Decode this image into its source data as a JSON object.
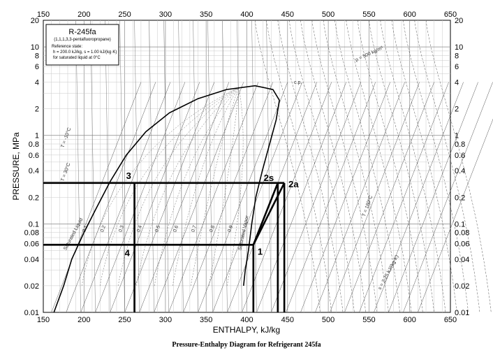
{
  "chart_data": {
    "type": "line",
    "title": "Pressure-Enthalpy Diagram for Refrigerant 245fa",
    "xlabel": "ENTHALPY, kJ/kg",
    "ylabel": "PRESSURE, MPa",
    "xlim": [
      150,
      650
    ],
    "ylim": [
      0.01,
      20
    ],
    "yscale": "log",
    "xticks": [
      150,
      200,
      250,
      300,
      350,
      400,
      450,
      500,
      550,
      600,
      650
    ],
    "yticks": [
      {
        "value": 0.01,
        "label": "0.01"
      },
      {
        "value": 0.02,
        "label": "0.02"
      },
      {
        "value": 0.04,
        "label": "0.04"
      },
      {
        "value": 0.06,
        "label": "0.06"
      },
      {
        "value": 0.08,
        "label": "0.08"
      },
      {
        "value": 0.1,
        "label": "0.1"
      },
      {
        "value": 0.2,
        "label": "0.2"
      },
      {
        "value": 0.4,
        "label": "0.4"
      },
      {
        "value": 0.6,
        "label": "0.6"
      },
      {
        "value": 0.8,
        "label": "0.8"
      },
      {
        "value": 1,
        "label": "1"
      },
      {
        "value": 2,
        "label": "2"
      },
      {
        "value": 4,
        "label": "4"
      },
      {
        "value": 6,
        "label": "6"
      },
      {
        "value": 8,
        "label": "8"
      },
      {
        "value": 10,
        "label": "10"
      },
      {
        "value": 20,
        "label": "20"
      }
    ],
    "grid": true,
    "legend_box": {
      "title": "R-245fa",
      "subtitle": "(1,1,1,3,3-pentafluoropropane)",
      "lines": [
        "Reference state:",
        "h = 200.0 kJ/kg,  s = 1.00 kJ/(kg·K)",
        "for saturated liquid at 0°C"
      ]
    },
    "saturation_dome": {
      "liquid": [
        [
          163,
          0.01
        ],
        [
          175,
          0.02
        ],
        [
          185,
          0.04
        ],
        [
          200,
          0.08
        ],
        [
          215,
          0.15
        ],
        [
          232,
          0.3
        ],
        [
          252,
          0.6
        ],
        [
          276,
          1.1
        ],
        [
          305,
          1.8
        ],
        [
          340,
          2.6
        ],
        [
          375,
          3.3
        ],
        [
          410,
          3.64
        ]
      ],
      "vapor": [
        [
          410,
          3.64
        ],
        [
          432,
          3.3
        ],
        [
          440,
          2.5
        ],
        [
          436,
          1.5
        ],
        [
          428,
          0.8
        ],
        [
          419,
          0.4
        ],
        [
          411,
          0.2
        ],
        [
          406,
          0.1
        ],
        [
          402,
          0.05
        ],
        [
          398,
          0.03
        ],
        [
          396,
          0.02
        ]
      ]
    },
    "critical_point_label": "c.p.",
    "isotherm_labels": [
      {
        "h": 175,
        "p": 0.3,
        "text": "T = 30°C"
      },
      {
        "h": 545,
        "p": 0.12,
        "text": "T = 180°C"
      },
      {
        "h": 175,
        "p": 0.72,
        "text": "T = -10°C"
      }
    ],
    "density_label": "ρ = 500 kg/m³",
    "entropy_label": "s = 2.25 kJ/(kg·K)",
    "quality_labels": [
      "0.1",
      "0.2",
      "0.3",
      "0.4",
      "0.5",
      "0.6",
      "0.7",
      "0.8",
      "0.9"
    ],
    "sat_labels": [
      "Saturated Liquid",
      "Saturated Vapor"
    ],
    "cycle": {
      "p_high": 0.29,
      "p_low": 0.058,
      "points": [
        {
          "label": "1",
          "h": 408,
          "p": 0.058
        },
        {
          "label": "2s",
          "h": 438,
          "p": 0.29
        },
        {
          "label": "2a",
          "h": 446,
          "p": 0.29
        },
        {
          "label": "3",
          "h": 262,
          "p": 0.29
        },
        {
          "label": "4",
          "h": 262,
          "p": 0.058
        }
      ]
    }
  }
}
